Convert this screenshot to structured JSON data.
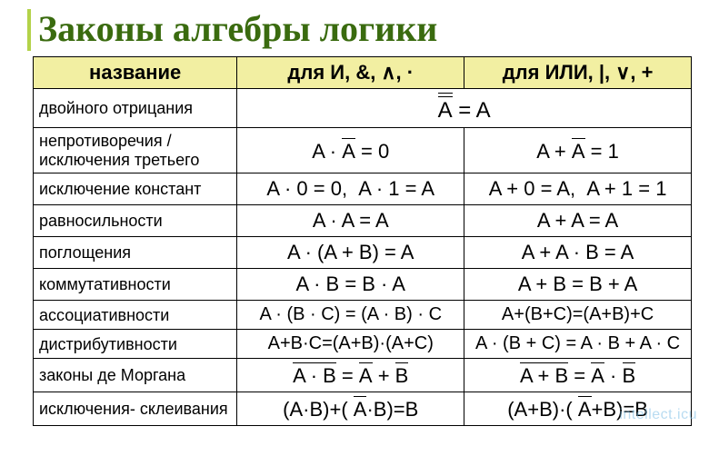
{
  "title": "Законы алгебры логики",
  "title_color": "#3a6b0f",
  "accent_bar_color": "#b3d249",
  "header_bg": "#f2efa2",
  "border_color": "#000000",
  "background": "#ffffff",
  "watermark": "intellect.icu",
  "watermark_color": "#7fbfe6",
  "columns": {
    "name": "название",
    "and": "для И, &, ∧, ·",
    "or": "для ИЛИ, |, ∨, +"
  },
  "rows": [
    {
      "name": "двойного отрицания",
      "span": true,
      "full_html": "<span class=\"ol2\">A</span> = A"
    },
    {
      "name": "непротиворечия / исключения третьего",
      "and_html": "A · <span class=\"ol\">A</span> = 0",
      "or_html": "A + <span class=\"ol\">A</span> = 1"
    },
    {
      "name": "исключение констант",
      "and_html": "A · 0 = 0,&nbsp;&nbsp;A · 1 = A",
      "or_html": "A + 0 = A,&nbsp;&nbsp;A + 1 = 1"
    },
    {
      "name": "равносильности",
      "and_html": "A · A = A",
      "or_html": "A + A = A"
    },
    {
      "name": "поглощения",
      "and_html": "A · (A + B) = A",
      "or_html": "A + A · B = A"
    },
    {
      "name": "коммутативности",
      "and_html": "A · B = B · A",
      "or_html": "A + B = B + A"
    },
    {
      "name": "ассоциативности",
      "and_html": "A · (B · C) = (A · B) · C",
      "or_html": "A+(B+C)=(A+B)+C",
      "small": true
    },
    {
      "name": "дистрибутивности",
      "and_html": "A+B·C=(A+B)·(A+C)",
      "or_html": "A · (B + C) = A · B + A · C",
      "small": true
    },
    {
      "name": "законы де Моргана",
      "and_html": "<span class=\"ol\">A · B</span> = <span class=\"ol\">A</span> + <span class=\"ol\">B</span>",
      "or_html": "<span class=\"ol\">A + B</span> = <span class=\"ol\">A</span> · <span class=\"ol\">B</span>"
    },
    {
      "name": "исключения- склеивания",
      "and_html": "(A·B)+(&nbsp;<span class=\"ol\">A</span>·B)=B",
      "or_html": "(A+B)·(&nbsp;<span class=\"ol\">A</span>+B)=B"
    }
  ]
}
